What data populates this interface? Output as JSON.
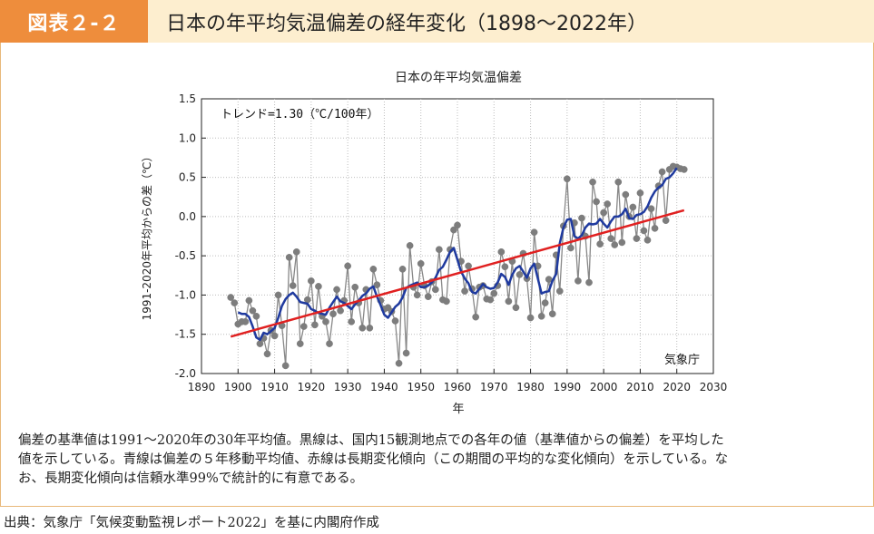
{
  "header": {
    "label": "図表２-２",
    "title": "日本の年平均気温偏差の経年変化（1898～2022年）"
  },
  "chart_data": {
    "type": "line",
    "title": "日本の年平均気温偏差",
    "xlabel": "年",
    "ylabel": "1991-2020年平均からの差（℃）",
    "xlim": [
      1890,
      2030
    ],
    "ylim": [
      -2.0,
      1.5
    ],
    "xticks": [
      1890,
      1900,
      1910,
      1920,
      1930,
      1940,
      1950,
      1960,
      1970,
      1980,
      1990,
      2000,
      2010,
      2020,
      2030
    ],
    "yticks": [
      -2.0,
      -1.5,
      -1.0,
      -0.5,
      0.0,
      0.5,
      1.0,
      1.5
    ],
    "ytick_labels": [
      "-2.0",
      "-1.5",
      "-1.0",
      "-0.5",
      "0.0",
      "0.5",
      "1.0",
      "1.5"
    ],
    "annotation_trend": "トレンド=1.30（℃/100年）",
    "annotation_source": "気象庁",
    "series": [
      {
        "name": "各年の値（基準値からの偏差）",
        "color": "#888888",
        "x": [
          1898,
          1899,
          1900,
          1901,
          1902,
          1903,
          1904,
          1905,
          1906,
          1907,
          1908,
          1909,
          1910,
          1911,
          1912,
          1913,
          1914,
          1915,
          1916,
          1917,
          1918,
          1919,
          1920,
          1921,
          1922,
          1923,
          1924,
          1925,
          1926,
          1927,
          1928,
          1929,
          1930,
          1931,
          1932,
          1933,
          1934,
          1935,
          1936,
          1937,
          1938,
          1939,
          1940,
          1941,
          1942,
          1943,
          1944,
          1945,
          1946,
          1947,
          1948,
          1949,
          1950,
          1951,
          1952,
          1953,
          1954,
          1955,
          1956,
          1957,
          1958,
          1959,
          1960,
          1961,
          1962,
          1963,
          1964,
          1965,
          1966,
          1967,
          1968,
          1969,
          1970,
          1971,
          1972,
          1973,
          1974,
          1975,
          1976,
          1977,
          1978,
          1979,
          1980,
          1981,
          1982,
          1983,
          1984,
          1985,
          1986,
          1987,
          1988,
          1989,
          1990,
          1991,
          1992,
          1993,
          1994,
          1995,
          1996,
          1997,
          1998,
          1999,
          2000,
          2001,
          2002,
          2003,
          2004,
          2005,
          2006,
          2007,
          2008,
          2009,
          2010,
          2011,
          2012,
          2013,
          2014,
          2015,
          2016,
          2017,
          2018,
          2019,
          2020,
          2021,
          2022
        ],
        "values": [
          -1.03,
          -1.1,
          -1.37,
          -1.34,
          -1.34,
          -1.07,
          -1.2,
          -1.27,
          -1.62,
          -1.55,
          -1.75,
          -1.45,
          -1.52,
          -1.0,
          -1.39,
          -1.9,
          -0.52,
          -0.88,
          -0.45,
          -1.62,
          -1.4,
          -1.06,
          -0.82,
          -1.38,
          -0.89,
          -1.27,
          -1.34,
          -1.62,
          -1.24,
          -0.93,
          -1.2,
          -1.07,
          -0.63,
          -1.34,
          -0.9,
          -1.1,
          -1.42,
          -0.93,
          -1.42,
          -0.67,
          -0.87,
          -1.07,
          -1.18,
          -1.16,
          -1.21,
          -1.33,
          -1.87,
          -0.67,
          -1.74,
          -0.37,
          -0.9,
          -1.0,
          -0.6,
          -0.88,
          -1.02,
          -0.83,
          -0.93,
          -0.42,
          -1.06,
          -1.08,
          -0.42,
          -0.17,
          -0.11,
          -0.57,
          -0.95,
          -0.63,
          -0.92,
          -1.28,
          -0.9,
          -0.88,
          -1.05,
          -1.06,
          -0.98,
          -0.88,
          -0.45,
          -0.64,
          -1.08,
          -0.57,
          -1.16,
          -0.74,
          -0.47,
          -0.79,
          -1.29,
          -0.2,
          -0.63,
          -1.27,
          -1.1,
          -0.8,
          -1.24,
          -0.49,
          -0.95,
          -0.12,
          0.48,
          -0.4,
          -0.08,
          -0.82,
          -0.02,
          -0.25,
          -0.84,
          0.44,
          0.19,
          -0.35,
          0.05,
          0.16,
          -0.28,
          -0.36,
          0.44,
          -0.33,
          0.28,
          0.0,
          0.12,
          -0.28,
          0.3,
          -0.18,
          -0.3,
          0.1,
          -0.15,
          0.39,
          0.57,
          -0.05,
          0.6,
          0.64,
          0.63,
          0.61,
          0.6
        ]
      },
      {
        "name": "5年移動平均値",
        "color": "#1f3a9f",
        "x": [
          1900,
          1901,
          1902,
          1903,
          1904,
          1905,
          1906,
          1907,
          1908,
          1909,
          1910,
          1911,
          1912,
          1913,
          1914,
          1915,
          1916,
          1917,
          1918,
          1919,
          1920,
          1921,
          1922,
          1923,
          1924,
          1925,
          1926,
          1927,
          1928,
          1929,
          1930,
          1931,
          1932,
          1933,
          1934,
          1935,
          1936,
          1937,
          1938,
          1939,
          1940,
          1941,
          1942,
          1943,
          1944,
          1945,
          1946,
          1947,
          1948,
          1949,
          1950,
          1951,
          1952,
          1953,
          1954,
          1955,
          1956,
          1957,
          1958,
          1959,
          1960,
          1961,
          1962,
          1963,
          1964,
          1965,
          1966,
          1967,
          1968,
          1969,
          1970,
          1971,
          1972,
          1973,
          1974,
          1975,
          1976,
          1977,
          1978,
          1979,
          1980,
          1981,
          1982,
          1983,
          1984,
          1985,
          1986,
          1987,
          1988,
          1989,
          1990,
          1991,
          1992,
          1993,
          1994,
          1995,
          1996,
          1997,
          1998,
          1999,
          2000,
          2001,
          2002,
          2003,
          2004,
          2005,
          2006,
          2007,
          2008,
          2009,
          2010,
          2011,
          2012,
          2013,
          2014,
          2015,
          2016,
          2017,
          2018,
          2019,
          2020
        ],
        "values": [
          -1.22,
          -1.24,
          -1.24,
          -1.28,
          -1.4,
          -1.54,
          -1.57,
          -1.48,
          -1.5,
          -1.46,
          -1.42,
          -1.29,
          -1.14,
          -1.05,
          -1.0,
          -0.97,
          -1.02,
          -1.09,
          -1.1,
          -1.11,
          -1.18,
          -1.2,
          -1.23,
          -1.24,
          -1.25,
          -1.16,
          -1.09,
          -1.02,
          -1.08,
          -1.1,
          -1.14,
          -1.18,
          -1.12,
          -1.07,
          -1.01,
          -0.98,
          -0.92,
          -0.89,
          -1.02,
          -1.13,
          -1.25,
          -1.29,
          -1.22,
          -1.15,
          -1.11,
          -1.03,
          -0.91,
          -0.88,
          -0.86,
          -0.84,
          -0.9,
          -0.9,
          -0.88,
          -0.84,
          -0.78,
          -0.68,
          -0.64,
          -0.55,
          -0.45,
          -0.4,
          -0.55,
          -0.7,
          -0.79,
          -0.85,
          -0.96,
          -0.98,
          -0.92,
          -0.86,
          -0.9,
          -0.92,
          -0.91,
          -0.84,
          -0.73,
          -0.77,
          -0.87,
          -0.74,
          -0.66,
          -0.63,
          -0.7,
          -0.78,
          -0.66,
          -0.6,
          -0.79,
          -0.98,
          -0.96,
          -0.95,
          -0.82,
          -0.73,
          -0.34,
          -0.14,
          -0.04,
          -0.03,
          -0.25,
          -0.28,
          -0.24,
          -0.14,
          -0.09,
          -0.1,
          -0.09,
          -0.03,
          -0.09,
          -0.14,
          -0.06,
          0.0,
          0.0,
          0.03,
          0.1,
          -0.02,
          -0.03,
          0.02,
          0.03,
          0.06,
          0.13,
          0.24,
          0.32,
          0.37,
          0.4,
          0.48,
          0.5,
          0.55,
          0.62
        ]
      },
      {
        "name": "長期変化傾向",
        "color": "#e02020",
        "x": [
          1898,
          2022
        ],
        "values": [
          -1.53,
          0.08
        ]
      }
    ]
  },
  "caption": {
    "line1": "偏差の基準値は1991～2020年の30年平均値。黒線は、国内15観測地点での各年の値（基準値からの偏差）を平均した",
    "line2": "値を示している。青線は偏差の５年移動平均値、赤線は長期変化傾向（この期間の平均的な変化傾向）を示している。な",
    "line3": "お、長期変化傾向は信頼水準99%で統計的に有意である。"
  },
  "source": "出典：気象庁「気候変動監視レポート2022」を基に内閣府作成"
}
